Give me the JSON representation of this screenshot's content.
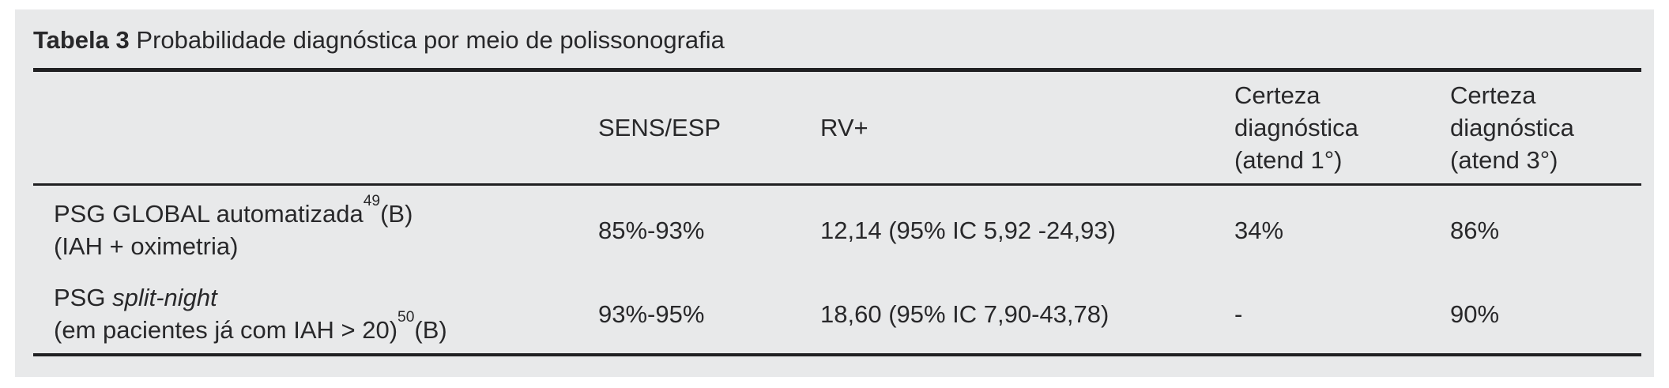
{
  "title": {
    "label": "Tabela 3",
    "text": "Probabilidade diagnóstica por meio de polissonografia"
  },
  "table": {
    "headers": {
      "col1": "",
      "col2": "SENS/ESP",
      "col3": "RV+",
      "col4": {
        "line1": "Certeza",
        "line2": "diagnóstica",
        "line3": "(atend 1°)"
      },
      "col5": {
        "line1": "Certeza",
        "line2": "diagnóstica",
        "line3": "(atend 3°)"
      }
    },
    "rows": [
      {
        "line1_pre": "PSG GLOBAL automatizada",
        "line1_sup": "49",
        "line1_post": "(B)",
        "line2": "(IAH + oximetria)",
        "sens_esp": "85%-93%",
        "rv_plus": "12,14 (95% IC 5,92 -24,93)",
        "certeza_atend1": "34%",
        "certeza_atend3": "86%"
      },
      {
        "line1_pre": "PSG ",
        "line1_italic": "split-night",
        "line2_pre": "(em pacientes já com IAH > 20)",
        "line2_sup": "50",
        "line2_post": "(B)",
        "sens_esp": "93%-95%",
        "rv_plus": "18,60 (95% IC 7,90-43,78)",
        "certeza_atend1": "-",
        "certeza_atend3": "90%"
      }
    ]
  },
  "colors": {
    "panel_bg": "#e8e9ea",
    "text": "#28282a",
    "rule": "#202022",
    "page_bg": "#ffffff"
  }
}
